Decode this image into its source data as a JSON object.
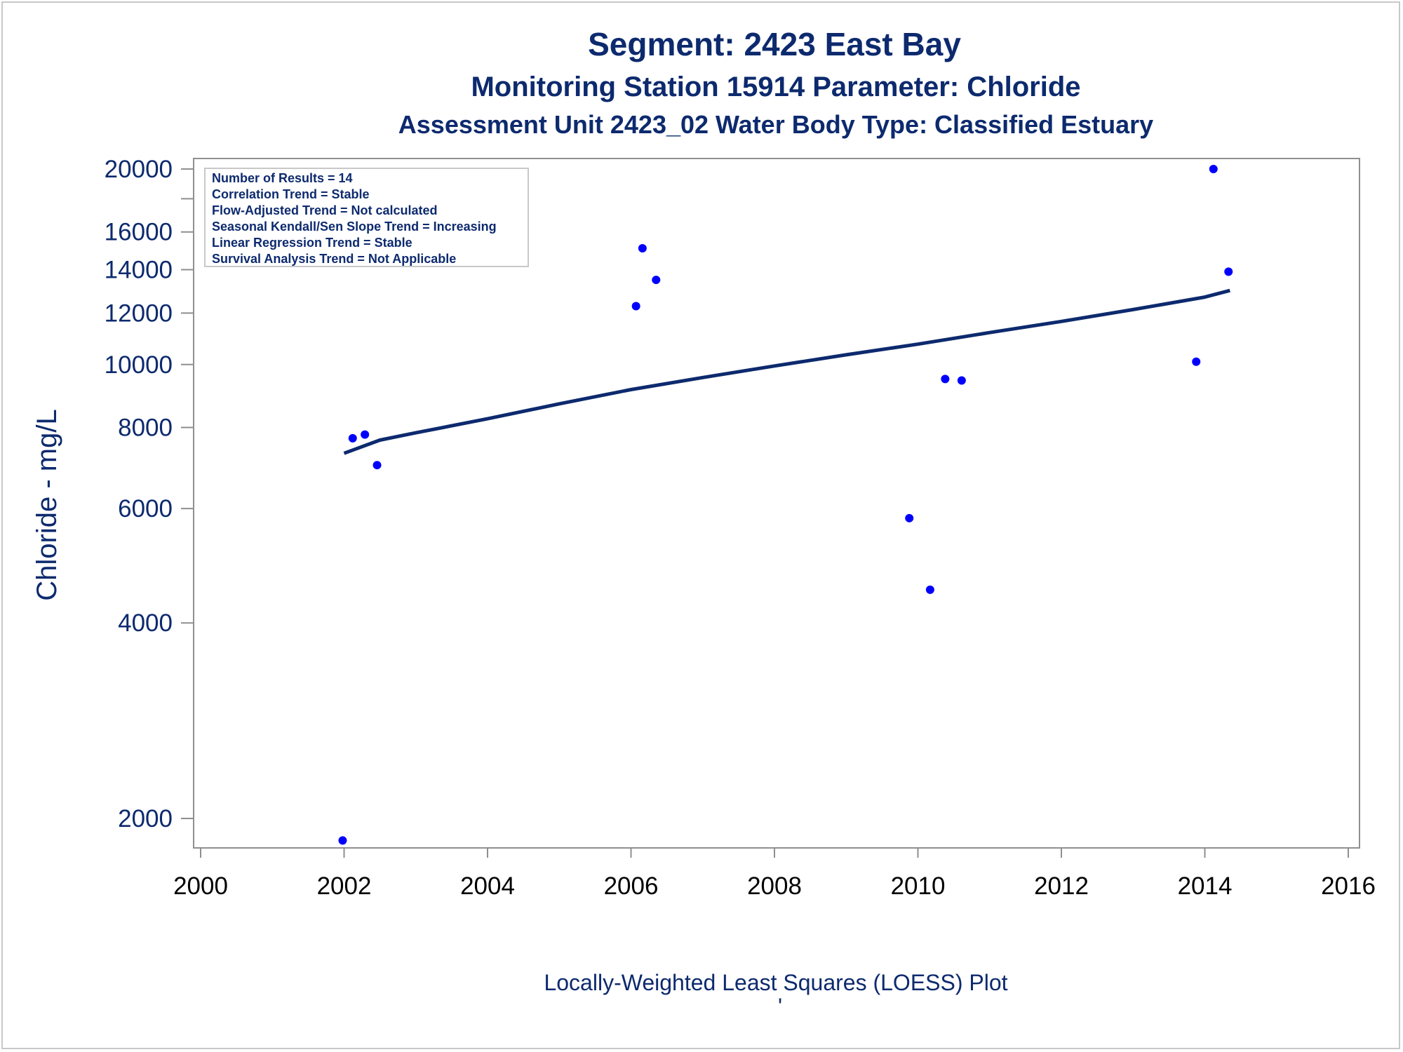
{
  "colors": {
    "title": "#0d2a6e",
    "axis": "#8f8f8f",
    "points": "#0000ff",
    "trend_line": "#0d2a6e",
    "x_tick_text": "#000000"
  },
  "chart_data": {
    "type": "scatter",
    "title": "Segment: 2423  East Bay",
    "subtitle": "Monitoring Station 15914 Parameter: Chloride",
    "subtitle2": "Assessment Unit 2423_02   Water Body Type: Classified Estuary",
    "xlabel": "Locally-Weighted Least Squares (LOESS) Plot",
    "ylabel": "Chloride - mg/L",
    "footnote": "'",
    "y_scale": "log",
    "xlim": [
      2000,
      2016
    ],
    "ylim": [
      1800,
      20800
    ],
    "x_ticks": [
      2000,
      2002,
      2004,
      2006,
      2008,
      2010,
      2012,
      2014,
      2016
    ],
    "y_ticks": [
      2000,
      4000,
      6000,
      8000,
      10000,
      12000,
      14000,
      16000,
      20000
    ],
    "y_minor_ticks": [
      18000
    ],
    "grid": false,
    "legend": "none",
    "stats_box": {
      "placement": "top-left",
      "lines": [
        "Number of Results = 14",
        "Correlation Trend = Stable",
        "Flow-Adjusted Trend = Not calculated",
        "Seasonal Kendall/Sen Slope Trend = Increasing",
        "Linear Regression Trend = Stable",
        "Survival Analysis Trend = Not Applicable"
      ]
    },
    "series": [
      {
        "kind": "points",
        "x": [
          2001.98,
          2002.12,
          2002.29,
          2002.46,
          2006.07,
          2006.16,
          2006.35,
          2009.88,
          2010.17,
          2010.38,
          2010.61,
          2013.88,
          2014.12,
          2014.33
        ],
        "y": [
          1850,
          7700,
          7800,
          7000,
          12300,
          15100,
          13500,
          5800,
          4500,
          9500,
          9450,
          10100,
          20000,
          13900
        ]
      },
      {
        "kind": "loess",
        "x": [
          2002.0,
          2002.5,
          2003.0,
          2004.0,
          2005.0,
          2006.0,
          2007.0,
          2008.0,
          2009.0,
          2010.0,
          2011.0,
          2012.0,
          2013.0,
          2014.0,
          2014.35
        ],
        "y": [
          7300,
          7650,
          7850,
          8250,
          8700,
          9150,
          9550,
          9950,
          10350,
          10750,
          11200,
          11650,
          12150,
          12700,
          13000
        ]
      }
    ]
  }
}
